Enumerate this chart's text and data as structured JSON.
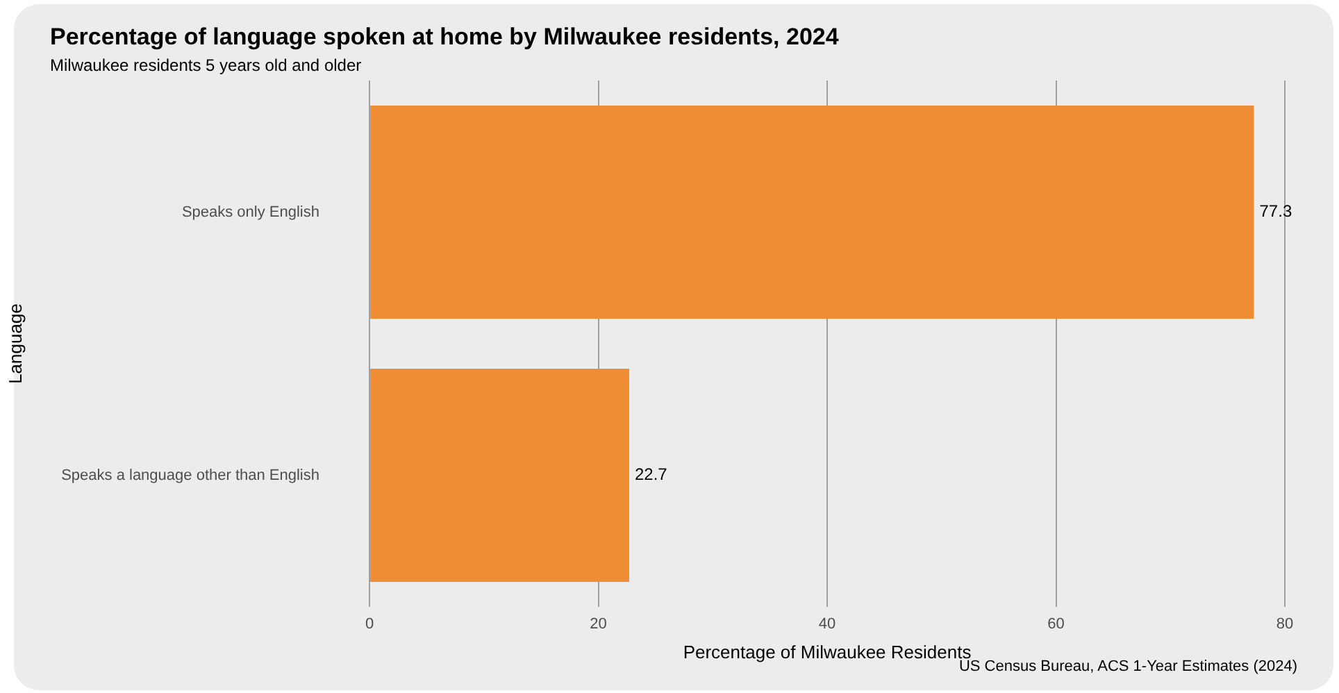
{
  "chart_data": {
    "type": "bar",
    "orientation": "horizontal",
    "title": "Percentage of language spoken at home by Milwaukee residents, 2024",
    "subtitle": "Milwaukee residents 5 years old and older",
    "xlabel": "Percentage of Milwaukee Residents",
    "ylabel": "Language",
    "categories": [
      "Speaks only English",
      "Speaks a language other than English"
    ],
    "values": [
      77.3,
      22.7
    ],
    "color": "#ee8d36",
    "xlim": [
      0,
      80
    ],
    "xticks": [
      0,
      20,
      40,
      60,
      80
    ],
    "grid": "x",
    "data_labels": true,
    "annotations": [
      "US Census Bureau, ACS 1-Year Estimates (2024)"
    ]
  }
}
